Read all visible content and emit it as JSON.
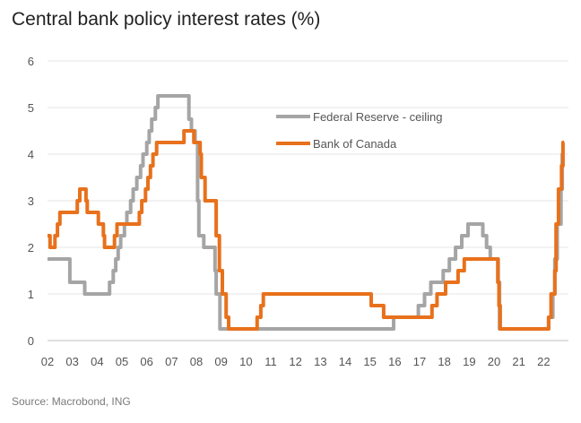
{
  "chart_data": {
    "type": "line",
    "title": "Central bank policy interest rates (%)",
    "source": "Source: Macrobond, ING",
    "xlabel": "",
    "ylabel": "",
    "xlim": [
      2002.0,
      2022.83
    ],
    "ylim": [
      0,
      6
    ],
    "y_ticks": [
      "0",
      "1",
      "2",
      "3",
      "4",
      "5",
      "6"
    ],
    "x_ticks": [
      "02",
      "03",
      "04",
      "05",
      "06",
      "07",
      "08",
      "09",
      "10",
      "11",
      "12",
      "13",
      "14",
      "15",
      "16",
      "17",
      "18",
      "19",
      "20",
      "21",
      "22"
    ],
    "grid": true,
    "legend_position": "center-right",
    "series": [
      {
        "name": "Federal Reserve - ceiling",
        "color": "#a5a5a5",
        "points": [
          [
            2002.0,
            1.75
          ],
          [
            2002.9,
            1.75
          ],
          [
            2002.9,
            1.25
          ],
          [
            2003.5,
            1.25
          ],
          [
            2003.5,
            1.0
          ],
          [
            2004.5,
            1.0
          ],
          [
            2004.5,
            1.25
          ],
          [
            2004.65,
            1.25
          ],
          [
            2004.65,
            1.5
          ],
          [
            2004.75,
            1.5
          ],
          [
            2004.75,
            1.75
          ],
          [
            2004.85,
            1.75
          ],
          [
            2004.85,
            2.0
          ],
          [
            2004.95,
            2.0
          ],
          [
            2004.95,
            2.25
          ],
          [
            2005.1,
            2.25
          ],
          [
            2005.1,
            2.5
          ],
          [
            2005.2,
            2.5
          ],
          [
            2005.2,
            2.75
          ],
          [
            2005.35,
            2.75
          ],
          [
            2005.35,
            3.0
          ],
          [
            2005.45,
            3.0
          ],
          [
            2005.45,
            3.25
          ],
          [
            2005.6,
            3.25
          ],
          [
            2005.6,
            3.5
          ],
          [
            2005.75,
            3.5
          ],
          [
            2005.75,
            3.75
          ],
          [
            2005.85,
            3.75
          ],
          [
            2005.85,
            4.0
          ],
          [
            2006.0,
            4.0
          ],
          [
            2006.0,
            4.25
          ],
          [
            2006.1,
            4.25
          ],
          [
            2006.1,
            4.5
          ],
          [
            2006.2,
            4.5
          ],
          [
            2006.2,
            4.75
          ],
          [
            2006.35,
            4.75
          ],
          [
            2006.35,
            5.0
          ],
          [
            2006.45,
            5.0
          ],
          [
            2006.45,
            5.25
          ],
          [
            2007.7,
            5.25
          ],
          [
            2007.7,
            4.75
          ],
          [
            2007.8,
            4.75
          ],
          [
            2007.8,
            4.5
          ],
          [
            2007.95,
            4.5
          ],
          [
            2007.95,
            4.25
          ],
          [
            2008.05,
            4.25
          ],
          [
            2008.05,
            3.0
          ],
          [
            2008.1,
            3.0
          ],
          [
            2008.1,
            2.25
          ],
          [
            2008.3,
            2.25
          ],
          [
            2008.3,
            2.0
          ],
          [
            2008.75,
            2.0
          ],
          [
            2008.75,
            1.5
          ],
          [
            2008.8,
            1.5
          ],
          [
            2008.8,
            1.0
          ],
          [
            2008.95,
            1.0
          ],
          [
            2008.95,
            0.25
          ],
          [
            2015.95,
            0.25
          ],
          [
            2015.95,
            0.5
          ],
          [
            2016.95,
            0.5
          ],
          [
            2016.95,
            0.75
          ],
          [
            2017.2,
            0.75
          ],
          [
            2017.2,
            1.0
          ],
          [
            2017.45,
            1.0
          ],
          [
            2017.45,
            1.25
          ],
          [
            2017.95,
            1.25
          ],
          [
            2017.95,
            1.5
          ],
          [
            2018.2,
            1.5
          ],
          [
            2018.2,
            1.75
          ],
          [
            2018.45,
            1.75
          ],
          [
            2018.45,
            2.0
          ],
          [
            2018.7,
            2.0
          ],
          [
            2018.7,
            2.25
          ],
          [
            2018.95,
            2.25
          ],
          [
            2018.95,
            2.5
          ],
          [
            2019.55,
            2.5
          ],
          [
            2019.55,
            2.25
          ],
          [
            2019.7,
            2.25
          ],
          [
            2019.7,
            2.0
          ],
          [
            2019.85,
            2.0
          ],
          [
            2019.85,
            1.75
          ],
          [
            2020.17,
            1.75
          ],
          [
            2020.17,
            1.25
          ],
          [
            2020.22,
            1.25
          ],
          [
            2020.22,
            0.25
          ],
          [
            2022.2,
            0.25
          ],
          [
            2022.2,
            0.5
          ],
          [
            2022.37,
            0.5
          ],
          [
            2022.37,
            1.0
          ],
          [
            2022.45,
            1.0
          ],
          [
            2022.45,
            1.75
          ],
          [
            2022.55,
            1.75
          ],
          [
            2022.55,
            2.5
          ],
          [
            2022.7,
            2.5
          ],
          [
            2022.7,
            3.25
          ],
          [
            2022.75,
            3.25
          ],
          [
            2022.75,
            4.0
          ],
          [
            2022.83,
            4.0
          ]
        ]
      },
      {
        "name": "Bank of Canada",
        "color": "#e8711c",
        "points": [
          [
            2002.0,
            2.25
          ],
          [
            2002.1,
            2.25
          ],
          [
            2002.1,
            2.0
          ],
          [
            2002.3,
            2.0
          ],
          [
            2002.3,
            2.25
          ],
          [
            2002.4,
            2.25
          ],
          [
            2002.4,
            2.5
          ],
          [
            2002.5,
            2.5
          ],
          [
            2002.5,
            2.75
          ],
          [
            2003.2,
            2.75
          ],
          [
            2003.2,
            3.0
          ],
          [
            2003.3,
            3.0
          ],
          [
            2003.3,
            3.25
          ],
          [
            2003.55,
            3.25
          ],
          [
            2003.55,
            3.0
          ],
          [
            2003.6,
            3.0
          ],
          [
            2003.6,
            2.75
          ],
          [
            2004.05,
            2.75
          ],
          [
            2004.05,
            2.5
          ],
          [
            2004.25,
            2.5
          ],
          [
            2004.25,
            2.25
          ],
          [
            2004.3,
            2.25
          ],
          [
            2004.3,
            2.0
          ],
          [
            2004.7,
            2.0
          ],
          [
            2004.7,
            2.25
          ],
          [
            2004.8,
            2.25
          ],
          [
            2004.8,
            2.5
          ],
          [
            2005.7,
            2.5
          ],
          [
            2005.7,
            2.75
          ],
          [
            2005.8,
            2.75
          ],
          [
            2005.8,
            3.0
          ],
          [
            2005.95,
            3.0
          ],
          [
            2005.95,
            3.25
          ],
          [
            2006.05,
            3.25
          ],
          [
            2006.05,
            3.5
          ],
          [
            2006.15,
            3.5
          ],
          [
            2006.15,
            3.75
          ],
          [
            2006.25,
            3.75
          ],
          [
            2006.25,
            4.0
          ],
          [
            2006.4,
            4.0
          ],
          [
            2006.4,
            4.25
          ],
          [
            2007.5,
            4.25
          ],
          [
            2007.5,
            4.5
          ],
          [
            2007.9,
            4.5
          ],
          [
            2007.9,
            4.25
          ],
          [
            2008.15,
            4.25
          ],
          [
            2008.15,
            4.0
          ],
          [
            2008.2,
            4.0
          ],
          [
            2008.2,
            3.5
          ],
          [
            2008.35,
            3.5
          ],
          [
            2008.35,
            3.0
          ],
          [
            2008.8,
            3.0
          ],
          [
            2008.8,
            2.25
          ],
          [
            2008.93,
            2.25
          ],
          [
            2008.93,
            1.5
          ],
          [
            2009.05,
            1.5
          ],
          [
            2009.05,
            1.0
          ],
          [
            2009.2,
            1.0
          ],
          [
            2009.2,
            0.5
          ],
          [
            2009.3,
            0.5
          ],
          [
            2009.3,
            0.25
          ],
          [
            2010.45,
            0.25
          ],
          [
            2010.45,
            0.5
          ],
          [
            2010.6,
            0.5
          ],
          [
            2010.6,
            0.75
          ],
          [
            2010.7,
            0.75
          ],
          [
            2010.7,
            1.0
          ],
          [
            2015.05,
            1.0
          ],
          [
            2015.05,
            0.75
          ],
          [
            2015.55,
            0.75
          ],
          [
            2015.55,
            0.5
          ],
          [
            2017.5,
            0.5
          ],
          [
            2017.5,
            0.75
          ],
          [
            2017.7,
            0.75
          ],
          [
            2017.7,
            1.0
          ],
          [
            2018.05,
            1.0
          ],
          [
            2018.05,
            1.25
          ],
          [
            2018.55,
            1.25
          ],
          [
            2018.55,
            1.5
          ],
          [
            2018.8,
            1.5
          ],
          [
            2018.8,
            1.75
          ],
          [
            2020.15,
            1.75
          ],
          [
            2020.15,
            1.25
          ],
          [
            2020.2,
            1.25
          ],
          [
            2020.2,
            0.75
          ],
          [
            2020.25,
            0.75
          ],
          [
            2020.25,
            0.25
          ],
          [
            2022.2,
            0.25
          ],
          [
            2022.2,
            0.5
          ],
          [
            2022.3,
            0.5
          ],
          [
            2022.3,
            1.0
          ],
          [
            2022.45,
            1.0
          ],
          [
            2022.45,
            1.5
          ],
          [
            2022.5,
            1.5
          ],
          [
            2022.5,
            2.5
          ],
          [
            2022.6,
            2.5
          ],
          [
            2022.6,
            3.25
          ],
          [
            2022.72,
            3.25
          ],
          [
            2022.72,
            3.75
          ],
          [
            2022.78,
            3.75
          ],
          [
            2022.78,
            4.25
          ],
          [
            2022.83,
            4.25
          ]
        ]
      }
    ]
  }
}
